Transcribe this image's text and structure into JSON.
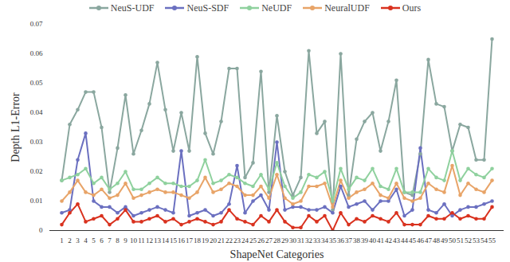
{
  "chart_data": {
    "type": "line",
    "x_label": "ShapeNet Categories",
    "y_label": "Depth L1-Error",
    "categories": [
      1,
      2,
      3,
      4,
      5,
      6,
      7,
      8,
      9,
      10,
      11,
      12,
      13,
      14,
      15,
      16,
      17,
      18,
      19,
      20,
      21,
      22,
      23,
      24,
      25,
      26,
      27,
      28,
      29,
      30,
      31,
      32,
      33,
      34,
      35,
      36,
      37,
      38,
      39,
      40,
      41,
      42,
      43,
      44,
      45,
      46,
      47,
      48,
      49,
      50,
      51,
      52,
      53,
      54,
      55
    ],
    "ylim": [
      0,
      0.07
    ],
    "yticks": [
      0,
      0.01,
      0.02,
      0.03,
      0.04,
      0.05,
      0.06,
      0.07
    ],
    "legend": "top",
    "marker": "circle",
    "grid": false,
    "series": [
      {
        "name": "NeuS-UDF",
        "color": "#8aa79f",
        "values": [
          0.017,
          0.036,
          0.041,
          0.047,
          0.047,
          0.035,
          0.013,
          0.028,
          0.046,
          0.026,
          0.034,
          0.043,
          0.057,
          0.041,
          0.027,
          0.04,
          0.027,
          0.059,
          0.033,
          0.026,
          0.037,
          0.055,
          0.055,
          0.018,
          0.023,
          0.054,
          0.013,
          0.039,
          0.02,
          0.012,
          0.018,
          0.061,
          0.033,
          0.037,
          0.007,
          0.06,
          0.012,
          0.031,
          0.037,
          0.04,
          0.027,
          0.037,
          0.051,
          0.013,
          0.012,
          0.026,
          0.058,
          0.043,
          0.042,
          0.027,
          0.036,
          0.035,
          0.024,
          0.024,
          0.065
        ]
      },
      {
        "name": "NeuS-SDF",
        "color": "#6b70c0",
        "values": [
          0.006,
          0.007,
          0.024,
          0.033,
          0.01,
          0.008,
          0.008,
          0.006,
          0.008,
          0.005,
          0.006,
          0.007,
          0.008,
          0.007,
          0.006,
          0.027,
          0.005,
          0.006,
          0.007,
          0.005,
          0.006,
          0.009,
          0.022,
          0.006,
          0.01,
          0.012,
          0.007,
          0.03,
          0.007,
          0.008,
          0.008,
          0.007,
          0.007,
          0.008,
          0.006,
          0.015,
          0.008,
          0.009,
          0.01,
          0.007,
          0.01,
          0.01,
          0.014,
          0.005,
          0.007,
          0.028,
          0.007,
          0.006,
          0.009,
          0.005,
          0.007,
          0.008,
          0.008,
          0.009,
          0.01
        ]
      },
      {
        "name": "NeUDF",
        "color": "#8fd19e",
        "values": [
          0.017,
          0.018,
          0.019,
          0.021,
          0.016,
          0.018,
          0.014,
          0.016,
          0.02,
          0.014,
          0.014,
          0.016,
          0.018,
          0.016,
          0.016,
          0.015,
          0.015,
          0.017,
          0.024,
          0.016,
          0.017,
          0.019,
          0.018,
          0.016,
          0.015,
          0.019,
          0.014,
          0.023,
          0.015,
          0.011,
          0.013,
          0.019,
          0.018,
          0.02,
          0.01,
          0.021,
          0.014,
          0.018,
          0.017,
          0.021,
          0.015,
          0.014,
          0.021,
          0.013,
          0.013,
          0.013,
          0.021,
          0.018,
          0.017,
          0.027,
          0.017,
          0.021,
          0.019,
          0.018,
          0.021
        ]
      },
      {
        "name": "NeuralUDF",
        "color": "#e8a468",
        "values": [
          0.01,
          0.013,
          0.017,
          0.013,
          0.012,
          0.014,
          0.011,
          0.012,
          0.016,
          0.011,
          0.012,
          0.013,
          0.014,
          0.013,
          0.013,
          0.012,
          0.011,
          0.013,
          0.018,
          0.013,
          0.014,
          0.016,
          0.015,
          0.012,
          0.012,
          0.015,
          0.011,
          0.019,
          0.011,
          0.009,
          0.01,
          0.015,
          0.015,
          0.016,
          0.008,
          0.017,
          0.011,
          0.013,
          0.014,
          0.016,
          0.012,
          0.011,
          0.016,
          0.011,
          0.01,
          0.011,
          0.016,
          0.014,
          0.013,
          0.022,
          0.012,
          0.016,
          0.014,
          0.013,
          0.017
        ]
      },
      {
        "name": "Ours",
        "color": "#d9321f",
        "values": [
          0.002,
          0.006,
          0.009,
          0.003,
          0.004,
          0.005,
          0.002,
          0.004,
          0.007,
          0.003,
          0.003,
          0.004,
          0.005,
          0.003,
          0.004,
          0.002,
          0.003,
          0.004,
          0.003,
          0.002,
          0.003,
          0.007,
          0.004,
          0.003,
          0.002,
          0.005,
          0.003,
          0.007,
          0.003,
          0.001,
          0.001,
          0.005,
          0.003,
          0.005,
          0.0,
          0.006,
          0.002,
          0.004,
          0.003,
          0.005,
          0.004,
          0.003,
          0.006,
          0.002,
          0.002,
          0.002,
          0.005,
          0.004,
          0.004,
          0.006,
          0.004,
          0.005,
          0.004,
          0.004,
          0.008
        ]
      }
    ]
  }
}
